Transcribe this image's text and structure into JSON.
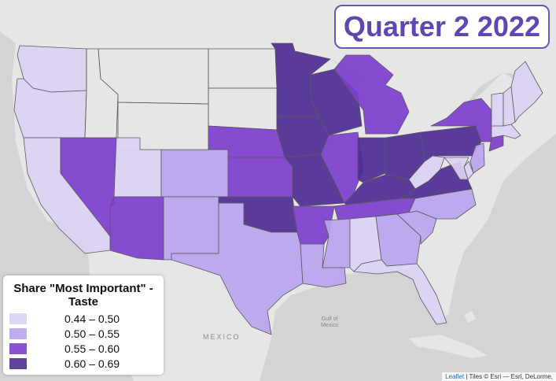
{
  "title": "Quarter 2 2022",
  "legend": {
    "title_line1": "Share \"Most Important\" -",
    "title_line2": "Taste",
    "bins": [
      {
        "label": "0.44 – 0.50",
        "color": "#dcd2f5"
      },
      {
        "label": "0.50 – 0.55",
        "color": "#b9a4ef"
      },
      {
        "label": "0.55 – 0.60",
        "color": "#7d3fd0"
      },
      {
        "label": "0.60 – 0.69",
        "color": "#4f2d93"
      }
    ]
  },
  "basemap_labels": {
    "mexico": "MEXICO",
    "gulf_line1": "Gulf of",
    "gulf_line2": "Mexico"
  },
  "attribution": {
    "leaflet": "Leaflet",
    "text": " | Tiles © Esri — Esri, DeLorme,"
  },
  "colors": {
    "water": "#d4d4d4",
    "land": "#e6e6e6",
    "title": "#6046b0"
  },
  "states": {
    "WA": 0,
    "OR": 0,
    "CA": 0,
    "NV": 2,
    "ID": null,
    "MT": null,
    "WY": null,
    "UT": 0,
    "AZ": 2,
    "CO": 1,
    "NM": 1,
    "ND": null,
    "SD": null,
    "NE": 2,
    "KS": 2,
    "OK": 3,
    "TX": 1,
    "MN": 3,
    "IA": 3,
    "MO": 3,
    "AR": 2,
    "LA": 1,
    "WI": 3,
    "IL": 2,
    "MI": 2,
    "IN": 3,
    "OH": 3,
    "KY": 3,
    "TN": 2,
    "MS": 1,
    "AL": 0,
    "GA": 1,
    "FL": 0,
    "SC": 1,
    "NC": 1,
    "VA": 3,
    "WV": 0,
    "PA": 3,
    "NY": 2,
    "ME": 0,
    "VT": 0,
    "NH": 0,
    "MA": 0,
    "CT": 2,
    "NJ": 1,
    "MD": 0,
    "DE": 0
  }
}
